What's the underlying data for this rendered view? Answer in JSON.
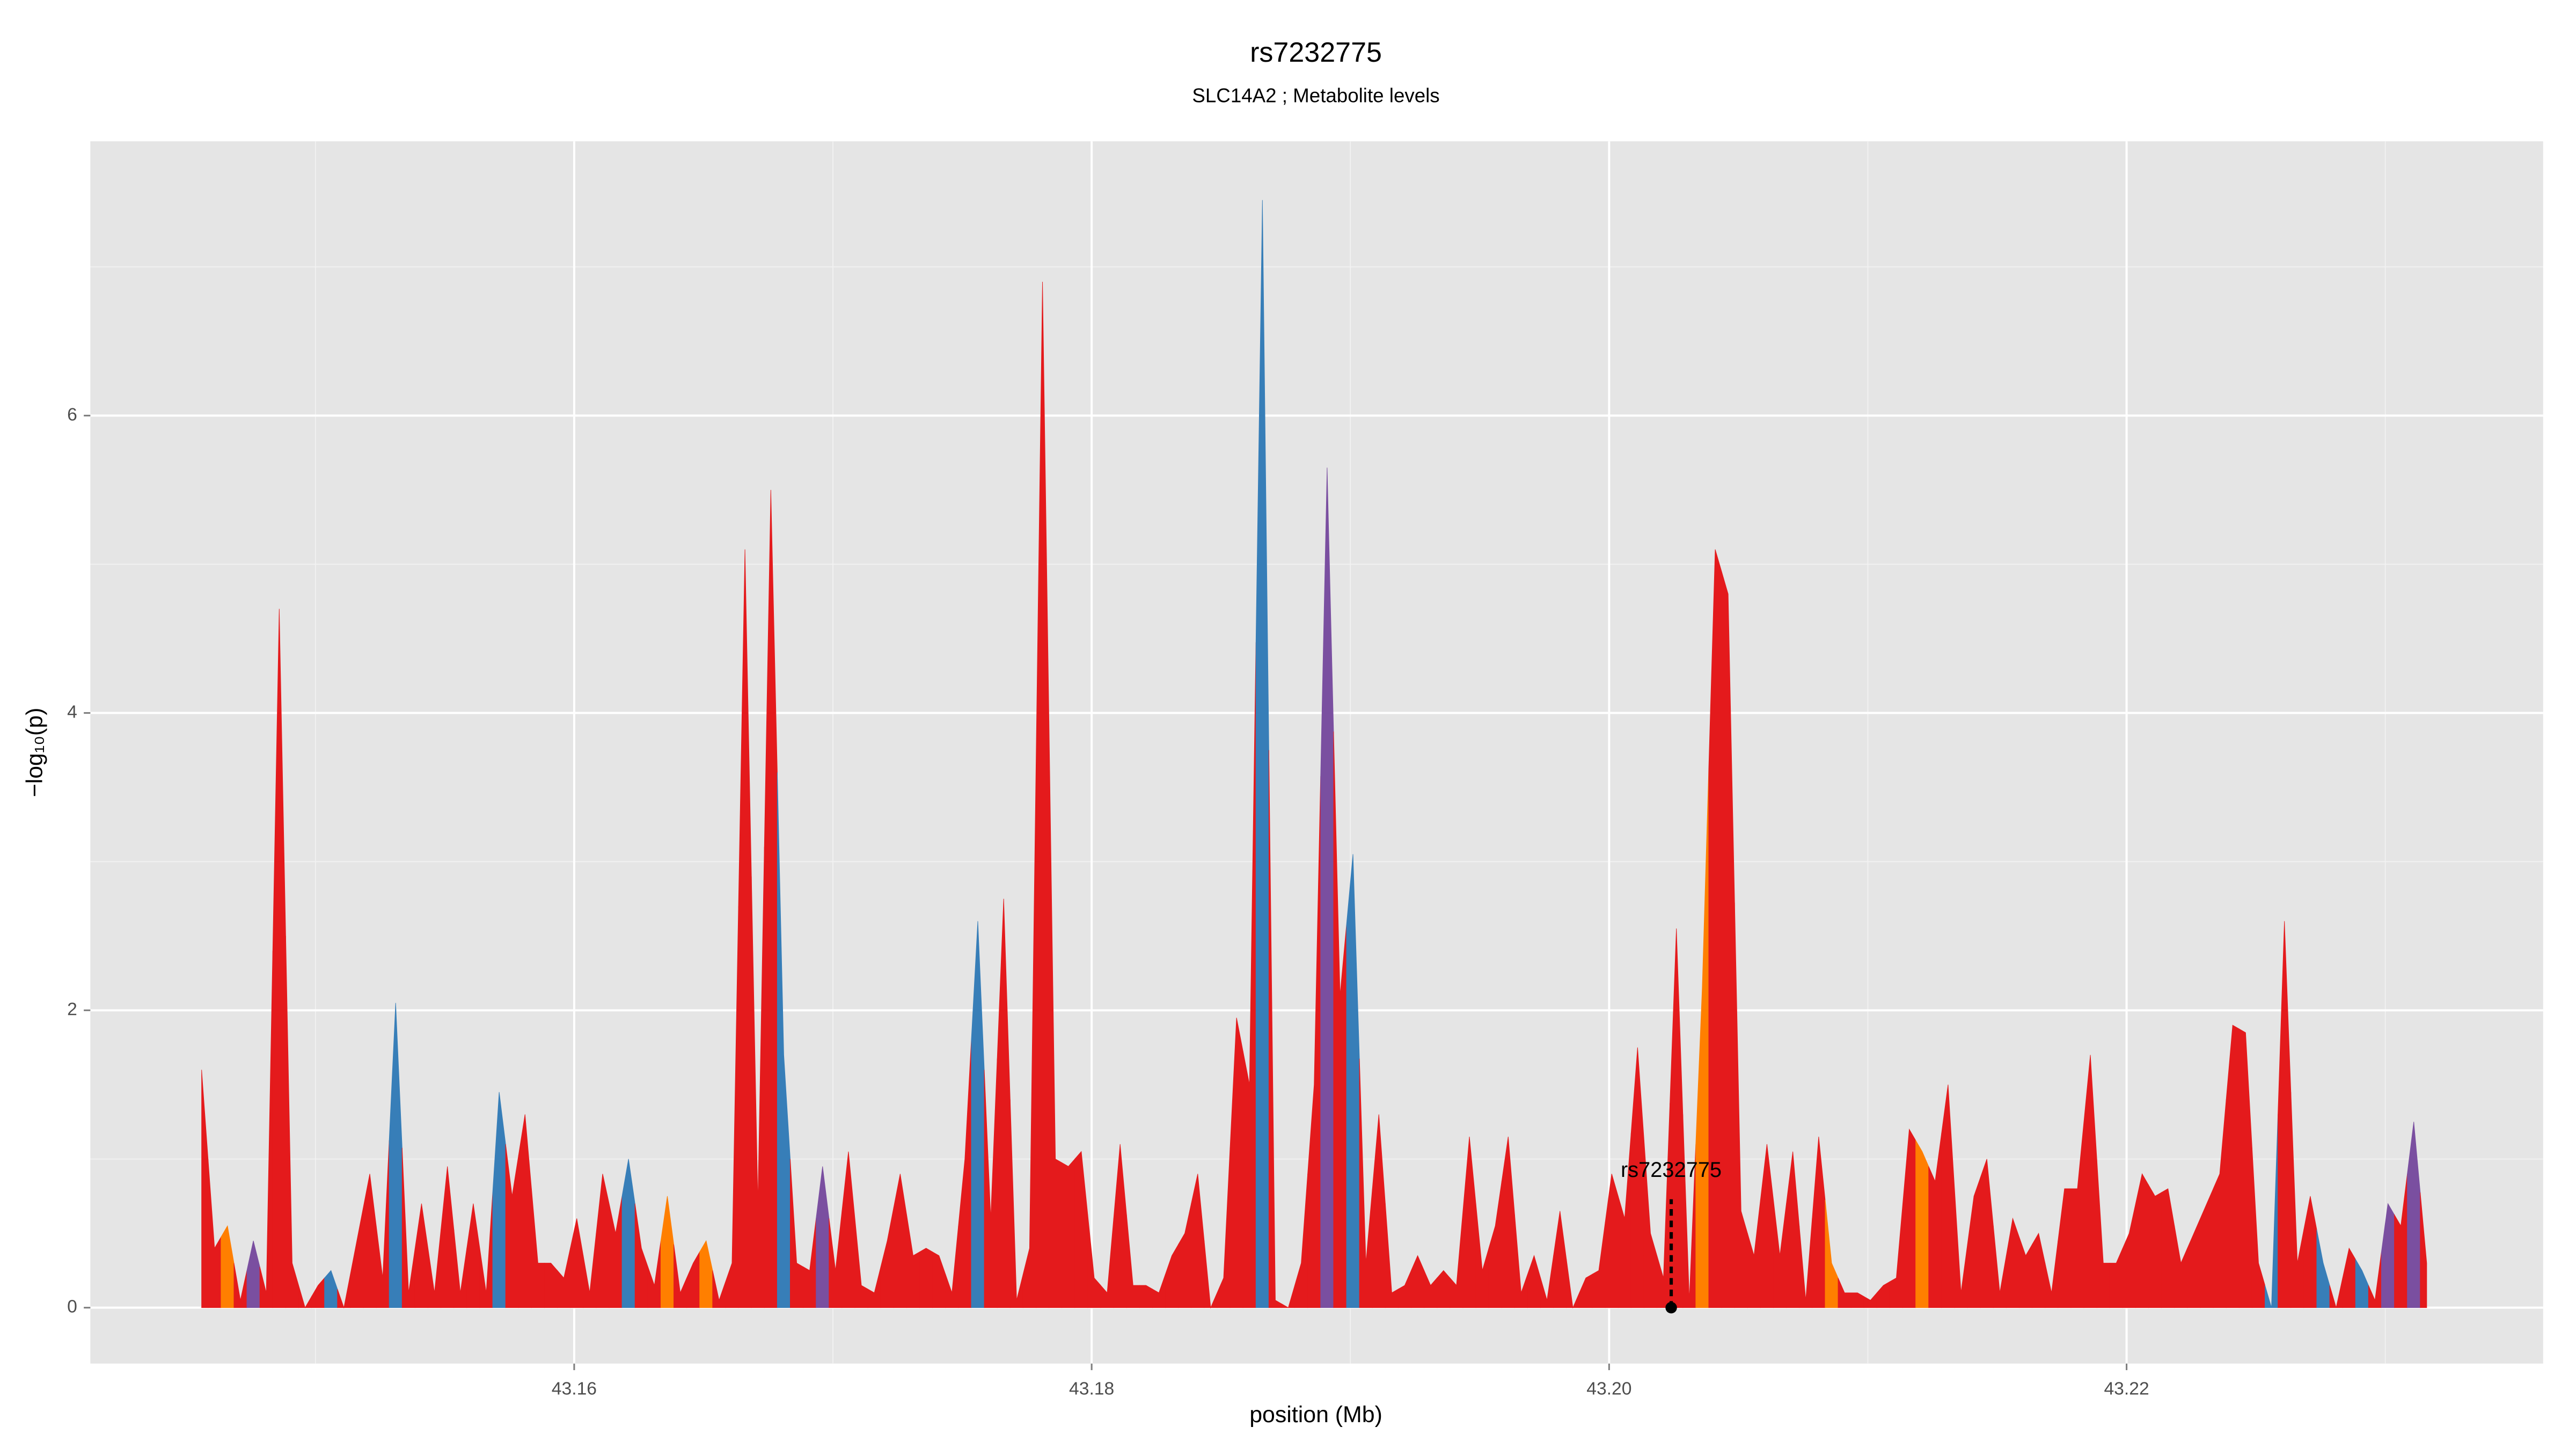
{
  "chart_data": {
    "type": "area",
    "title": "rs7232775",
    "subtitle": "SLC14A2 ; Metabolite levels",
    "xlabel": "position (Mb)",
    "ylabel": "−log₁₀(p)",
    "xlim": [
      43.1413,
      43.2361
    ],
    "ylim": [
      -0.376,
      7.845
    ],
    "xticks": [
      43.16,
      43.18,
      {
        "value": 43.2,
        "label": "43.20"
      },
      43.22
    ],
    "yticks": [
      0,
      2,
      4,
      6
    ],
    "grid": true,
    "annotation": {
      "text": "rs7232775",
      "x": 43.2024,
      "y": 0
    },
    "x": [
      43.1456,
      43.1461,
      43.1466,
      43.1471,
      43.1476,
      43.1481,
      43.1486,
      43.1491,
      43.1496,
      43.1501,
      43.1506,
      43.1511,
      43.1516,
      43.1521,
      43.1526,
      43.1531,
      43.1536,
      43.1541,
      43.1546,
      43.1551,
      43.1556,
      43.1561,
      43.1566,
      43.1571,
      43.1576,
      43.1581,
      43.1586,
      43.1591,
      43.1596,
      43.1601,
      43.1606,
      43.1611,
      43.1616,
      43.1621,
      43.1626,
      43.1631,
      43.1636,
      43.1641,
      43.1646,
      43.1651,
      43.1656,
      43.1661,
      43.1666,
      43.1671,
      43.1676,
      43.1681,
      43.1686,
      43.1691,
      43.1696,
      43.1701,
      43.1706,
      43.1711,
      43.1716,
      43.1721,
      43.1726,
      43.1731,
      43.1736,
      43.1741,
      43.1746,
      43.1751,
      43.1756,
      43.1761,
      43.1766,
      43.1771,
      43.1776,
      43.1781,
      43.1786,
      43.1791,
      43.1796,
      43.1801,
      43.1806,
      43.1811,
      43.1816,
      43.1821,
      43.1826,
      43.1831,
      43.1836,
      43.1841,
      43.1846,
      43.1851,
      43.1856,
      43.1861,
      43.1866,
      43.1871,
      43.1876,
      43.1881,
      43.1886,
      43.1891,
      43.1896,
      43.1901,
      43.1906,
      43.1911,
      43.1916,
      43.1921,
      43.1926,
      43.1931,
      43.1936,
      43.1941,
      43.1946,
      43.1951,
      43.1956,
      43.1961,
      43.1966,
      43.1971,
      43.1976,
      43.1981,
      43.1986,
      43.1991,
      43.1996,
      43.2001,
      43.2006,
      43.2011,
      43.2016,
      43.2021,
      43.2026,
      43.2031,
      43.2036,
      43.2041,
      43.2046,
      43.2051,
      43.2056,
      43.2061,
      43.2066,
      43.2071,
      43.2076,
      43.2081,
      43.2086,
      43.2091,
      43.2096,
      43.2101,
      43.2106,
      43.2111,
      43.2116,
      43.2121,
      43.2126,
      43.2131,
      43.2136,
      43.2141,
      43.2146,
      43.2151,
      43.2156,
      43.2161,
      43.2166,
      43.2171,
      43.2176,
      43.2181,
      43.2186,
      43.2191,
      43.2196,
      43.2201,
      43.2206,
      43.2211,
      43.2216,
      43.2221,
      43.2226,
      43.2231,
      43.2236,
      43.2241,
      43.2246,
      43.2251,
      43.2256,
      43.2261,
      43.2266,
      43.2271,
      43.2276,
      43.2281,
      43.2286,
      43.2291,
      43.2296,
      43.2301,
      43.2306,
      43.2311,
      43.2316
    ],
    "values": [
      1.6,
      0.4,
      0.55,
      0.05,
      0.45,
      0.1,
      4.7,
      0.3,
      0.0,
      0.15,
      0.25,
      0.0,
      0.45,
      0.9,
      0.2,
      2.05,
      0.1,
      0.7,
      0.1,
      0.95,
      0.1,
      0.7,
      0.1,
      1.45,
      0.75,
      1.3,
      0.3,
      0.3,
      0.2,
      0.6,
      0.1,
      0.9,
      0.5,
      1.0,
      0.4,
      0.15,
      0.75,
      0.1,
      0.3,
      0.45,
      0.05,
      0.3,
      5.1,
      0.7,
      5.5,
      1.7,
      0.3,
      0.25,
      0.95,
      0.25,
      1.05,
      0.15,
      0.1,
      0.45,
      0.9,
      0.35,
      0.4,
      0.35,
      0.1,
      1.0,
      2.6,
      0.6,
      2.75,
      0.05,
      0.4,
      6.9,
      1.0,
      0.95,
      1.05,
      0.2,
      0.1,
      1.1,
      0.15,
      0.15,
      0.1,
      0.35,
      0.5,
      0.9,
      0.0,
      0.2,
      1.95,
      1.5,
      7.45,
      0.05,
      0.0,
      0.3,
      1.5,
      5.65,
      2.1,
      3.05,
      0.3,
      1.3,
      0.1,
      0.15,
      0.35,
      0.15,
      0.25,
      0.15,
      1.15,
      0.25,
      0.55,
      1.15,
      0.1,
      0.35,
      0.05,
      0.65,
      0.0,
      0.2,
      0.25,
      0.9,
      0.6,
      1.75,
      0.5,
      0.2,
      2.55,
      0.05,
      2.15,
      5.1,
      4.8,
      0.65,
      0.35,
      1.1,
      0.35,
      1.05,
      0.05,
      1.15,
      0.3,
      0.1,
      0.1,
      0.05,
      0.15,
      0.2,
      1.2,
      1.05,
      0.85,
      1.5,
      0.1,
      0.75,
      1.0,
      0.1,
      0.6,
      0.35,
      0.5,
      0.1,
      0.8,
      0.8,
      1.7,
      0.3,
      0.3,
      0.5,
      0.9,
      0.75,
      0.8,
      0.3,
      0.5,
      0.7,
      0.9,
      1.9,
      1.85,
      0.3,
      0.0,
      2.6,
      0.3,
      0.75,
      0.3,
      0.0,
      0.4,
      0.25,
      0.05,
      0.7,
      0.55,
      1.25,
      0.3
    ],
    "colors": [
      "#e41a1c",
      "#e41a1c",
      "#ff7f00",
      "#e41a1c",
      "#7a4fa0",
      "#e41a1c",
      "#e41a1c",
      "#e41a1c",
      "#e41a1c",
      "#e41a1c",
      "#377eb8",
      "#e41a1c",
      "#e41a1c",
      "#e41a1c",
      "#e41a1c",
      "#377eb8",
      "#e41a1c",
      "#e41a1c",
      "#e41a1c",
      "#e41a1c",
      "#e41a1c",
      "#e41a1c",
      "#e41a1c",
      "#377eb8",
      "#e41a1c",
      "#e41a1c",
      "#e41a1c",
      "#e41a1c",
      "#e41a1c",
      "#e41a1c",
      "#e41a1c",
      "#e41a1c",
      "#e41a1c",
      "#377eb8",
      "#e41a1c",
      "#e41a1c",
      "#ff7f00",
      "#e41a1c",
      "#e41a1c",
      "#ff7f00",
      "#e41a1c",
      "#e41a1c",
      "#e41a1c",
      "#e41a1c",
      "#e41a1c",
      "#377eb8",
      "#e41a1c",
      "#e41a1c",
      "#7a4fa0",
      "#e41a1c",
      "#e41a1c",
      "#e41a1c",
      "#e41a1c",
      "#e41a1c",
      "#e41a1c",
      "#e41a1c",
      "#e41a1c",
      "#e41a1c",
      "#e41a1c",
      "#e41a1c",
      "#377eb8",
      "#e41a1c",
      "#e41a1c",
      "#e41a1c",
      "#e41a1c",
      "#e41a1c",
      "#e41a1c",
      "#e41a1c",
      "#e41a1c",
      "#e41a1c",
      "#e41a1c",
      "#e41a1c",
      "#e41a1c",
      "#e41a1c",
      "#e41a1c",
      "#e41a1c",
      "#e41a1c",
      "#e41a1c",
      "#e41a1c",
      "#e41a1c",
      "#e41a1c",
      "#e41a1c",
      "#377eb8",
      "#e41a1c",
      "#e41a1c",
      "#e41a1c",
      "#e41a1c",
      "#7a4fa0",
      "#e41a1c",
      "#377eb8",
      "#e41a1c",
      "#e41a1c",
      "#e41a1c",
      "#e41a1c",
      "#e41a1c",
      "#e41a1c",
      "#e41a1c",
      "#e41a1c",
      "#e41a1c",
      "#e41a1c",
      "#e41a1c",
      "#e41a1c",
      "#e41a1c",
      "#e41a1c",
      "#e41a1c",
      "#e41a1c",
      "#e41a1c",
      "#e41a1c",
      "#e41a1c",
      "#e41a1c",
      "#e41a1c",
      "#e41a1c",
      "#e41a1c",
      "#e41a1c",
      "#e41a1c",
      "#e41a1c",
      "#ff7f00",
      "#e41a1c",
      "#e41a1c",
      "#e41a1c",
      "#e41a1c",
      "#e41a1c",
      "#e41a1c",
      "#e41a1c",
      "#e41a1c",
      "#e41a1c",
      "#ff7f00",
      "#e41a1c",
      "#e41a1c",
      "#e41a1c",
      "#e41a1c",
      "#e41a1c",
      "#e41a1c",
      "#ff7f00",
      "#e41a1c",
      "#e41a1c",
      "#e41a1c",
      "#e41a1c",
      "#e41a1c",
      "#e41a1c",
      "#e41a1c",
      "#e41a1c",
      "#e41a1c",
      "#e41a1c",
      "#e41a1c",
      "#e41a1c",
      "#e41a1c",
      "#e41a1c",
      "#e41a1c",
      "#e41a1c",
      "#e41a1c",
      "#e41a1c",
      "#e41a1c",
      "#e41a1c",
      "#e41a1c",
      "#e41a1c",
      "#e41a1c",
      "#e41a1c",
      "#e41a1c",
      "#e41a1c",
      "#377eb8",
      "#e41a1c",
      "#e41a1c",
      "#e41a1c",
      "#377eb8",
      "#e41a1c",
      "#e41a1c",
      "#377eb8",
      "#e41a1c",
      "#7a4fa0",
      "#e41a1c",
      "#7a4fa0",
      "#e41a1c"
    ]
  }
}
